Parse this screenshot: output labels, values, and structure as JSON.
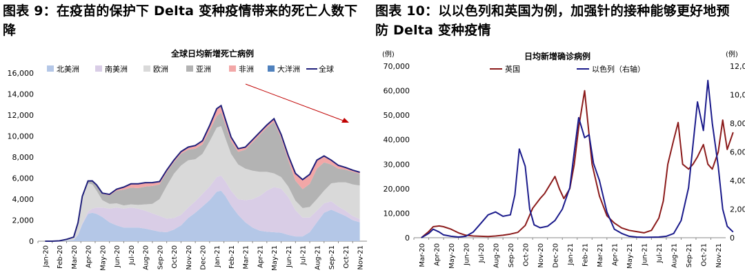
{
  "left": {
    "figure_title": "图表 9：在疫苗的保护下 Delta 变种疫情带来的死亡人数下降",
    "chart_data": {
      "type": "area",
      "title": "全球日均新增死亡病例",
      "categories": [
        "Jan-20",
        "Feb-20",
        "Mar-20",
        "Apr-20",
        "May-20",
        "Jun-20",
        "Jul-20",
        "Aug-20",
        "Sep-20",
        "Oct-20",
        "Nov-20",
        "Dec-20",
        "Jan-21",
        "Feb-21",
        "Mar-21",
        "Apr-21",
        "May-21",
        "Jun-21",
        "Jul-21",
        "Aug-21",
        "Sep-21",
        "Oct-21",
        "Nov-21"
      ],
      "ylim": [
        0,
        16000
      ],
      "yticks": [
        "0",
        "2,000",
        "4,000",
        "6,000",
        "8,000",
        "10,000",
        "12,000",
        "14,000",
        "16,000"
      ],
      "legend": [
        "北美洲",
        "南美洲",
        "欧洲",
        "亚洲",
        "非洲",
        "大洋洲",
        "全球"
      ],
      "colors": {
        "north_america": "#b4c7e7",
        "south_america": "#d9cde6",
        "europe": "#d9d9d9",
        "asia": "#b3b3b3",
        "africa": "#f2a7a7",
        "oceania": "#4f81bd",
        "world": "#1f1f7a"
      },
      "x": [
        0,
        0.5,
        1,
        1.5,
        2,
        2.3,
        2.6,
        3,
        3.3,
        3.6,
        4,
        4.5,
        5,
        5.5,
        6,
        6.5,
        7,
        7.5,
        8,
        8.5,
        9,
        9.5,
        10,
        10.5,
        11,
        11.5,
        12,
        12.3,
        12.6,
        13,
        13.5,
        14,
        14.5,
        15,
        15.5,
        16,
        16.5,
        17,
        17.5,
        18,
        18.5,
        19,
        19.5,
        20,
        20.5,
        21,
        21.5,
        22
      ],
      "series": [
        {
          "name": "北美洲",
          "values": [
            0,
            0,
            20,
            60,
            120,
            600,
            1600,
            2600,
            2700,
            2600,
            2300,
            1800,
            1500,
            1300,
            1300,
            1300,
            1200,
            1050,
            900,
            850,
            1100,
            1500,
            2200,
            2700,
            3300,
            3900,
            4700,
            4800,
            4300,
            3400,
            2500,
            1800,
            1300,
            1000,
            900,
            850,
            800,
            600,
            450,
            450,
            850,
            1800,
            2700,
            3000,
            2700,
            2400,
            2000,
            1800
          ]
        },
        {
          "name": "南美洲",
          "values": [
            0,
            0,
            0,
            0,
            10,
            50,
            100,
            200,
            400,
            600,
            900,
            1300,
            1700,
            1800,
            1900,
            1800,
            1700,
            1600,
            1500,
            1300,
            1100,
            1000,
            1000,
            1100,
            1200,
            1300,
            1400,
            1450,
            1400,
            1400,
            1500,
            2100,
            2700,
            3300,
            3900,
            4300,
            4200,
            3600,
            2500,
            1800,
            1400,
            1100,
            900,
            800,
            600,
            500,
            400,
            300
          ]
        },
        {
          "name": "欧洲",
          "values": [
            0,
            0,
            5,
            40,
            200,
            1000,
            2400,
            2700,
            2300,
            1600,
            700,
            450,
            400,
            300,
            300,
            350,
            600,
            900,
            1600,
            3100,
            4200,
            4700,
            4500,
            4000,
            3800,
            4300,
            4700,
            4700,
            4100,
            3500,
            3300,
            3000,
            2700,
            2300,
            1800,
            1300,
            1100,
            1000,
            900,
            900,
            1000,
            1100,
            1200,
            1700,
            2300,
            2700,
            3000,
            3200
          ]
        },
        {
          "name": "亚洲",
          "values": [
            0,
            0,
            10,
            80,
            50,
            100,
            150,
            200,
            300,
            500,
            600,
            800,
            1200,
            1500,
            1600,
            1600,
            1700,
            1700,
            1400,
            1300,
            1100,
            1100,
            1000,
            1000,
            900,
            1000,
            1100,
            1300,
            1300,
            1200,
            1200,
            1800,
            2700,
            3500,
            4200,
            4900,
            3700,
            2500,
            1900,
            1800,
            2200,
            2900,
            2700,
            1800,
            1300,
            1200,
            1200,
            1100
          ]
        },
        {
          "name": "非洲",
          "values": [
            0,
            0,
            0,
            0,
            5,
            10,
            20,
            30,
            40,
            60,
            80,
            100,
            150,
            250,
            350,
            400,
            350,
            300,
            250,
            200,
            200,
            220,
            250,
            300,
            350,
            500,
            700,
            650,
            500,
            400,
            300,
            250,
            250,
            250,
            250,
            300,
            350,
            450,
            700,
            900,
            900,
            800,
            600,
            400,
            300,
            200,
            150,
            150
          ]
        },
        {
          "name": "大洋洲",
          "values": [
            0,
            0,
            0,
            0,
            0,
            0,
            0,
            0,
            0,
            0,
            0,
            0,
            0,
            0,
            5,
            10,
            20,
            25,
            20,
            10,
            5,
            3,
            2,
            2,
            2,
            2,
            2,
            2,
            2,
            2,
            2,
            2,
            2,
            2,
            2,
            2,
            2,
            2,
            5,
            5,
            10,
            10,
            10,
            10,
            10,
            10,
            10,
            10
          ]
        }
      ],
      "world_line_name": "全球",
      "trend_arrow": true
    }
  },
  "right": {
    "figure_title": "图表 10：以以色列和英国为例，加强针的接种能够更好地预防 Delta 变种疫情",
    "chart_data": {
      "type": "line",
      "title": "日均新增确诊病例",
      "categories": [
        "Mar-20",
        "Apr-20",
        "May-20",
        "Jun-20",
        "Jul-20",
        "Aug-20",
        "Sep-20",
        "Oct-20",
        "Nov-20",
        "Dec-20",
        "Jan-21",
        "Feb-21",
        "Mar-21",
        "Apr-21",
        "May-21",
        "Jun-21",
        "Jul-21",
        "Aug-21",
        "Sep-21",
        "Oct-21",
        "Nov-21"
      ],
      "ylabel_left": "(例)",
      "ylabel_right": "(例)",
      "ylim_left": [
        0,
        70000
      ],
      "ylim_right": [
        0,
        12000
      ],
      "yticks_left": [
        "0",
        "10,000",
        "20,000",
        "30,000",
        "40,000",
        "50,000",
        "60,000",
        "70,000"
      ],
      "yticks_right": [
        "0",
        "2,000",
        "4,000",
        "6,000",
        "8,000",
        "10,000",
        "12,000"
      ],
      "series": [
        {
          "name": "英国",
          "axis": "left",
          "color": "#8b1a1a",
          "x": [
            0,
            0.5,
            0.8,
            1.2,
            1.5,
            2,
            2.5,
            3,
            3.5,
            4,
            4.5,
            5,
            5.5,
            6,
            6.5,
            7,
            7.5,
            8,
            8.3,
            8.6,
            9,
            9.3,
            9.6,
            10,
            10.3,
            10.6,
            11,
            11.5,
            12,
            12.5,
            13,
            13.5,
            14,
            14.5,
            15,
            15.5,
            16,
            16.3,
            16.6,
            17,
            17.3,
            17.6,
            18,
            18.3,
            18.6,
            19,
            19.3,
            19.6,
            20,
            20.3,
            20.6,
            21
          ],
          "values": [
            0,
            2500,
            4500,
            4800,
            4500,
            3500,
            2000,
            1000,
            700,
            600,
            500,
            700,
            1000,
            1500,
            2200,
            5000,
            12000,
            16000,
            18000,
            21000,
            25000,
            20000,
            16000,
            20000,
            30000,
            45000,
            60000,
            30000,
            17000,
            9000,
            6000,
            4000,
            3000,
            2500,
            2000,
            3000,
            8000,
            15000,
            30000,
            40000,
            47000,
            30000,
            28000,
            30000,
            33000,
            38000,
            30000,
            28000,
            35000,
            48000,
            36000,
            43000
          ]
        },
        {
          "name": "以色列（右轴）",
          "axis": "right",
          "color": "#1a1a8b",
          "x": [
            0,
            0.5,
            0.8,
            1.2,
            1.5,
            2,
            2.5,
            3,
            3.5,
            4,
            4.5,
            5,
            5.5,
            6,
            6.3,
            6.6,
            7,
            7.3,
            7.6,
            8,
            8.5,
            9,
            9.5,
            10,
            10.3,
            10.6,
            11,
            11.3,
            11.6,
            12,
            12.5,
            13,
            13.5,
            14,
            14.5,
            15,
            15.5,
            16,
            16.5,
            17,
            17.5,
            18,
            18.3,
            18.6,
            19,
            19.3,
            19.6,
            20,
            20.3,
            20.6,
            21
          ],
          "values": [
            0,
            300,
            600,
            400,
            200,
            100,
            50,
            100,
            400,
            1000,
            1600,
            1800,
            1500,
            1600,
            3000,
            6200,
            5000,
            2000,
            900,
            700,
            800,
            1200,
            2000,
            3500,
            6000,
            8400,
            7000,
            7200,
            5200,
            4000,
            1800,
            600,
            300,
            100,
            50,
            30,
            40,
            50,
            100,
            300,
            1200,
            3500,
            6500,
            9500,
            7500,
            11000,
            8000,
            5000,
            2000,
            800,
            400
          ]
        }
      ]
    }
  }
}
